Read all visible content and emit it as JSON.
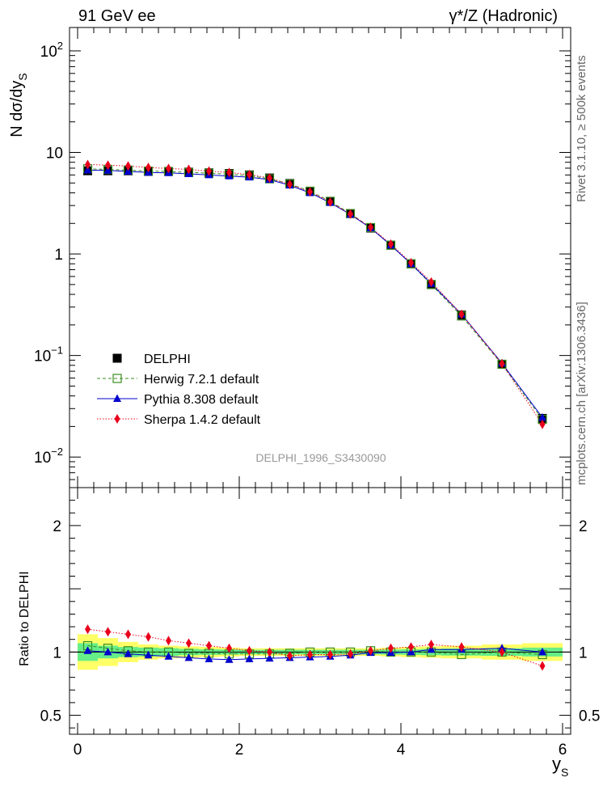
{
  "header": {
    "left": "91 GeV ee",
    "right": "γ*/Z (Hadronic)"
  },
  "side": {
    "rivet": "Rivet 3.1.10, ≥ 500k events",
    "mcplots": "mcplots.cern.ch [arXiv:1306.3436]"
  },
  "analysis_tag": "DELPHI_1996_S3430090",
  "colors": {
    "delphi": "#000000",
    "herwig": "#3a8c1f",
    "pythia": "#0000cc",
    "sherpa": "#e8001c",
    "band_yellow": "#ffff66",
    "band_green": "#66ee88"
  },
  "chart_data": [
    {
      "type": "scatter",
      "title": "",
      "ylabel": "N dσ/dy",
      "ylabel_sub": "S",
      "yscale": "log",
      "ylim": [
        0.005,
        170
      ],
      "xlim": [
        -0.1,
        6.1
      ],
      "yticks": [
        {
          "v": 100,
          "m": "10",
          "e": "2"
        },
        {
          "v": 10,
          "m": "10",
          "e": ""
        },
        {
          "v": 1,
          "m": "1",
          "e": ""
        },
        {
          "v": 0.1,
          "m": "10",
          "e": "−1"
        },
        {
          "v": 0.01,
          "m": "10",
          "e": "−2"
        }
      ],
      "x": [
        0.125,
        0.375,
        0.625,
        0.875,
        1.125,
        1.375,
        1.625,
        1.875,
        2.125,
        2.375,
        2.625,
        2.875,
        3.125,
        3.375,
        3.625,
        3.875,
        4.125,
        4.375,
        4.75,
        5.25,
        5.75
      ],
      "series": [
        {
          "name": "DELPHI",
          "key": "delphi",
          "values": [
            6.6,
            6.6,
            6.6,
            6.5,
            6.5,
            6.4,
            6.3,
            6.2,
            6.0,
            5.6,
            4.95,
            4.15,
            3.3,
            2.5,
            1.8,
            1.22,
            0.8,
            0.5,
            0.25,
            0.082,
            0.024
          ]
        },
        {
          "name": "Herwig 7.2.1 default",
          "key": "herwig",
          "values": [
            6.9,
            6.8,
            6.7,
            6.55,
            6.5,
            6.35,
            6.25,
            6.1,
            5.9,
            5.5,
            4.9,
            4.15,
            3.3,
            2.5,
            1.82,
            1.22,
            0.8,
            0.5,
            0.245,
            0.082,
            0.0235
          ]
        },
        {
          "name": "Pythia 8.308 default",
          "key": "pythia",
          "values": [
            6.7,
            6.65,
            6.5,
            6.35,
            6.3,
            6.15,
            6.0,
            5.85,
            5.7,
            5.4,
            4.75,
            4.0,
            3.2,
            2.45,
            1.8,
            1.22,
            0.8,
            0.51,
            0.255,
            0.084,
            0.0245
          ]
        },
        {
          "name": "Sherpa 1.4.2 default",
          "key": "sherpa",
          "values": [
            7.6,
            7.5,
            7.35,
            7.1,
            6.95,
            6.8,
            6.55,
            6.35,
            6.05,
            5.6,
            4.85,
            4.1,
            3.25,
            2.47,
            1.83,
            1.25,
            0.82,
            0.53,
            0.255,
            0.083,
            0.021
          ]
        }
      ],
      "legend": "bottom-left"
    },
    {
      "type": "scatter",
      "ylabel": "Ratio to DELPHI",
      "xlabel": "y",
      "xlabel_sub": "S",
      "ylim": [
        0.35,
        2.3
      ],
      "yticks": [
        2,
        1,
        0.5
      ],
      "ytick_labels": [
        "2",
        "1",
        "0.5"
      ],
      "xticks": [
        0,
        2,
        4,
        6
      ],
      "xtick_labels": [
        "0",
        "2",
        "4",
        "6"
      ],
      "band_edges": [
        0.0,
        0.25,
        0.5,
        0.75,
        1.0,
        1.25,
        1.5,
        1.75,
        2.0,
        2.25,
        2.5,
        2.75,
        3.0,
        3.25,
        3.5,
        3.75,
        4.0,
        4.25,
        4.5,
        5.0,
        5.5,
        6.0
      ],
      "band_yellow": [
        0.14,
        0.11,
        0.08,
        0.06,
        0.05,
        0.045,
        0.04,
        0.035,
        0.03,
        0.03,
        0.03,
        0.03,
        0.03,
        0.03,
        0.03,
        0.035,
        0.04,
        0.045,
        0.05,
        0.06,
        0.07
      ],
      "band_green": [
        0.07,
        0.05,
        0.04,
        0.035,
        0.03,
        0.025,
        0.022,
        0.02,
        0.018,
        0.018,
        0.018,
        0.018,
        0.018,
        0.018,
        0.018,
        0.02,
        0.022,
        0.025,
        0.028,
        0.03,
        0.035
      ],
      "series": [
        {
          "name": "Herwig 7.2.1 default",
          "key": "herwig",
          "values": [
            1.05,
            1.03,
            1.01,
            1.0,
            1.0,
            0.99,
            0.99,
            0.985,
            0.985,
            0.985,
            0.99,
            1.0,
            1.0,
            1.0,
            1.01,
            1.0,
            1.0,
            1.0,
            0.98,
            1.0,
            0.98
          ]
        },
        {
          "name": "Pythia 8.308 default",
          "key": "pythia",
          "values": [
            1.01,
            1.0,
            0.985,
            0.975,
            0.965,
            0.955,
            0.945,
            0.94,
            0.945,
            0.95,
            0.955,
            0.96,
            0.965,
            0.975,
            0.995,
            0.995,
            1.0,
            1.02,
            1.02,
            1.03,
            1.0
          ]
        },
        {
          "name": "Sherpa 1.4.2 default",
          "key": "sherpa",
          "values": [
            1.18,
            1.16,
            1.14,
            1.12,
            1.09,
            1.07,
            1.05,
            1.03,
            1.01,
            1.0,
            0.97,
            0.98,
            0.98,
            0.985,
            1.01,
            1.03,
            1.04,
            1.06,
            1.04,
            1.0,
            0.89
          ]
        }
      ]
    }
  ]
}
